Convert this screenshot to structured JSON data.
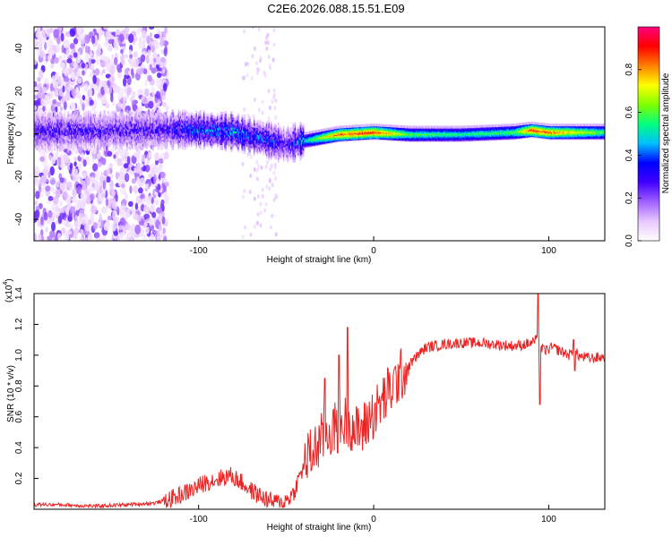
{
  "title": "C2E6.2026.088.15.51.E09",
  "chart_data": [
    {
      "type": "heatmap",
      "name": "spectrogram",
      "xlabel": "Height of straight line (km)",
      "ylabel": "Frequency (Hz)",
      "xlim": [
        -194,
        132
      ],
      "ylim": [
        -50,
        50
      ],
      "xticks": [
        -100,
        0,
        100
      ],
      "yticks": [
        -40,
        -20,
        0,
        20,
        40
      ],
      "colorbar": {
        "label": "Normalized spectral amplitude",
        "range": [
          0,
          1
        ],
        "ticks": [
          "0.0",
          "0.2",
          "0.4",
          "0.6",
          "0.8"
        ],
        "tick_values": [
          0.0,
          0.2,
          0.4,
          0.6,
          0.8
        ],
        "colormap": [
          "#ffffff",
          "#e8c8ff",
          "#a060ff",
          "#4000ff",
          "#0000ff",
          "#00c0ff",
          "#00ff80",
          "#80ff00",
          "#ffff00",
          "#ff8000",
          "#ff0000",
          "#ff0080"
        ]
      },
      "ridge": [
        {
          "x": -194,
          "freq": 1,
          "amp": 0.3
        },
        {
          "x": -120,
          "freq": 2,
          "amp": 0.3
        },
        {
          "x": -100,
          "freq": 2,
          "amp": 0.45
        },
        {
          "x": -80,
          "freq": 1,
          "amp": 0.45
        },
        {
          "x": -60,
          "freq": -3,
          "amp": 0.4
        },
        {
          "x": -50,
          "freq": -5,
          "amp": 0.3
        },
        {
          "x": -40,
          "freq": -3,
          "amp": 0.5
        },
        {
          "x": -20,
          "freq": 0,
          "amp": 0.85
        },
        {
          "x": 0,
          "freq": 1,
          "amp": 0.9
        },
        {
          "x": 20,
          "freq": 0,
          "amp": 0.6
        },
        {
          "x": 50,
          "freq": 0,
          "amp": 0.55
        },
        {
          "x": 80,
          "freq": 1,
          "amp": 0.6
        },
        {
          "x": 90,
          "freq": 2,
          "amp": 0.9
        },
        {
          "x": 100,
          "freq": 1,
          "amp": 0.85
        },
        {
          "x": 132,
          "freq": 1,
          "amp": 0.6
        }
      ]
    },
    {
      "type": "line",
      "name": "snr",
      "xlabel": "Height of straight line (km)",
      "ylabel": "SNR (10 * v/v)",
      "multiplier": "(x10",
      "multiplier_exp": "4",
      "multiplier_close": ")",
      "xlim": [
        -194,
        132
      ],
      "ylim": [
        0,
        1.4
      ],
      "xticks": [
        -100,
        0,
        100
      ],
      "yticks": [
        0.2,
        0.4,
        0.6,
        0.8,
        1.0,
        1.2,
        1.4
      ],
      "ytick_labels": [
        "0.2",
        "0.4",
        "0.6",
        "0.8",
        "1.0",
        "1.2",
        "1.4"
      ],
      "color": "#ee2222",
      "series": [
        {
          "name": "SNR",
          "x": [
            -194,
            -180,
            -160,
            -140,
            -125,
            -115,
            -105,
            -95,
            -88,
            -82,
            -76,
            -70,
            -64,
            -58,
            -52,
            -46,
            -42,
            -38,
            -34,
            -30,
            -26,
            -22,
            -18,
            -14,
            -10,
            -6,
            -2,
            2,
            6,
            10,
            14,
            18,
            22,
            26,
            30,
            40,
            50,
            60,
            70,
            80,
            86,
            90,
            93,
            95,
            98,
            102,
            108,
            112,
            114,
            118,
            124,
            132
          ],
          "y": [
            0.03,
            0.03,
            0.02,
            0.03,
            0.04,
            0.07,
            0.12,
            0.18,
            0.2,
            0.22,
            0.18,
            0.12,
            0.08,
            0.05,
            0.04,
            0.1,
            0.22,
            0.33,
            0.38,
            0.45,
            0.5,
            0.52,
            0.55,
            0.58,
            0.5,
            0.52,
            0.6,
            0.65,
            0.72,
            0.78,
            0.85,
            0.9,
            0.96,
            1.01,
            1.05,
            1.07,
            1.08,
            1.08,
            1.07,
            1.06,
            1.07,
            1.08,
            1.1,
            1.05,
            1.03,
            1.05,
            1.02,
            1.0,
            1.03,
            0.99,
            0.98,
            0.99
          ]
        }
      ],
      "spikes": [
        {
          "x": -15,
          "y": 1.18
        },
        {
          "x": -20,
          "y": 1.0
        },
        {
          "x": -28,
          "y": 0.85
        },
        {
          "x": 94,
          "y": 1.4
        },
        {
          "x": 95,
          "y": 0.68
        },
        {
          "x": 114,
          "y": 1.1
        },
        {
          "x": 115,
          "y": 0.9
        }
      ]
    }
  ]
}
